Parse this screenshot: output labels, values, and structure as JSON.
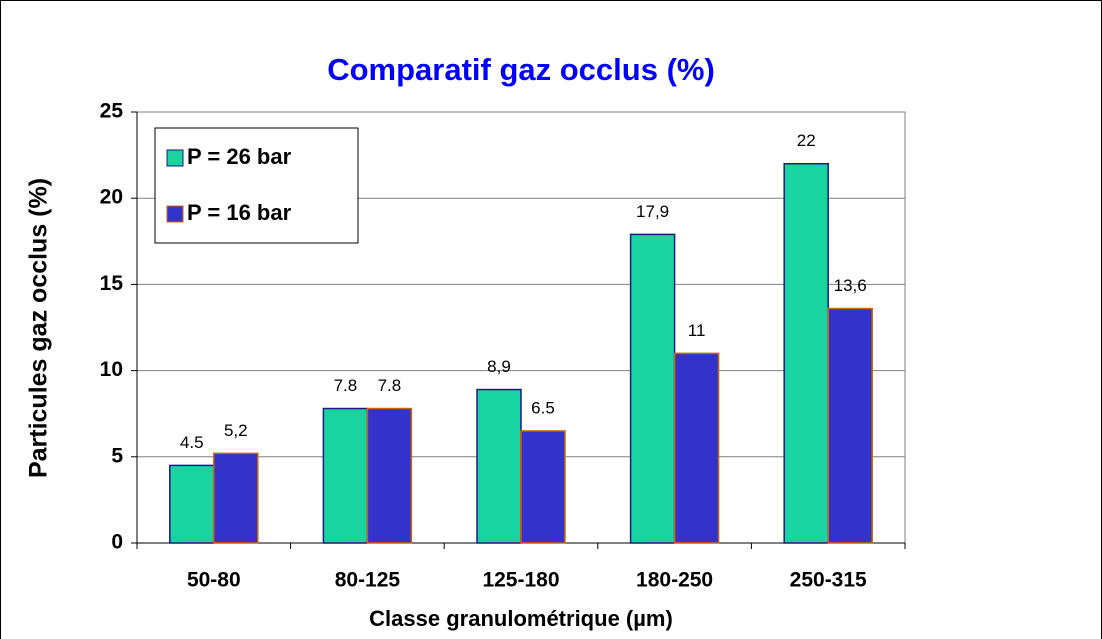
{
  "chart_data": {
    "type": "bar",
    "title": "Comparatif gaz occlus (%)",
    "xlabel": "Classe granulométrique (µm)",
    "ylabel": "Particules gaz occlus (%)",
    "categories": [
      "50-80",
      "80-125",
      "125-180",
      "180-250",
      "250-315"
    ],
    "series": [
      {
        "name": "P = 26 bar",
        "color": "#19d3a0",
        "values": [
          4.5,
          7.8,
          8.9,
          17.9,
          22
        ],
        "value_labels": [
          "4.5",
          "7.8",
          "8,9",
          "17,9",
          "22"
        ]
      },
      {
        "name": "P = 16 bar",
        "color": "#3333cc",
        "values": [
          5.2,
          7.8,
          6.5,
          11,
          13.6
        ],
        "value_labels": [
          "5,2",
          "7.8",
          "6.5",
          "11",
          "13,6"
        ]
      }
    ],
    "ylim": [
      0,
      25
    ],
    "yticks": [
      0,
      5,
      10,
      15,
      20,
      25
    ],
    "grid": true,
    "legend": "upper left"
  }
}
